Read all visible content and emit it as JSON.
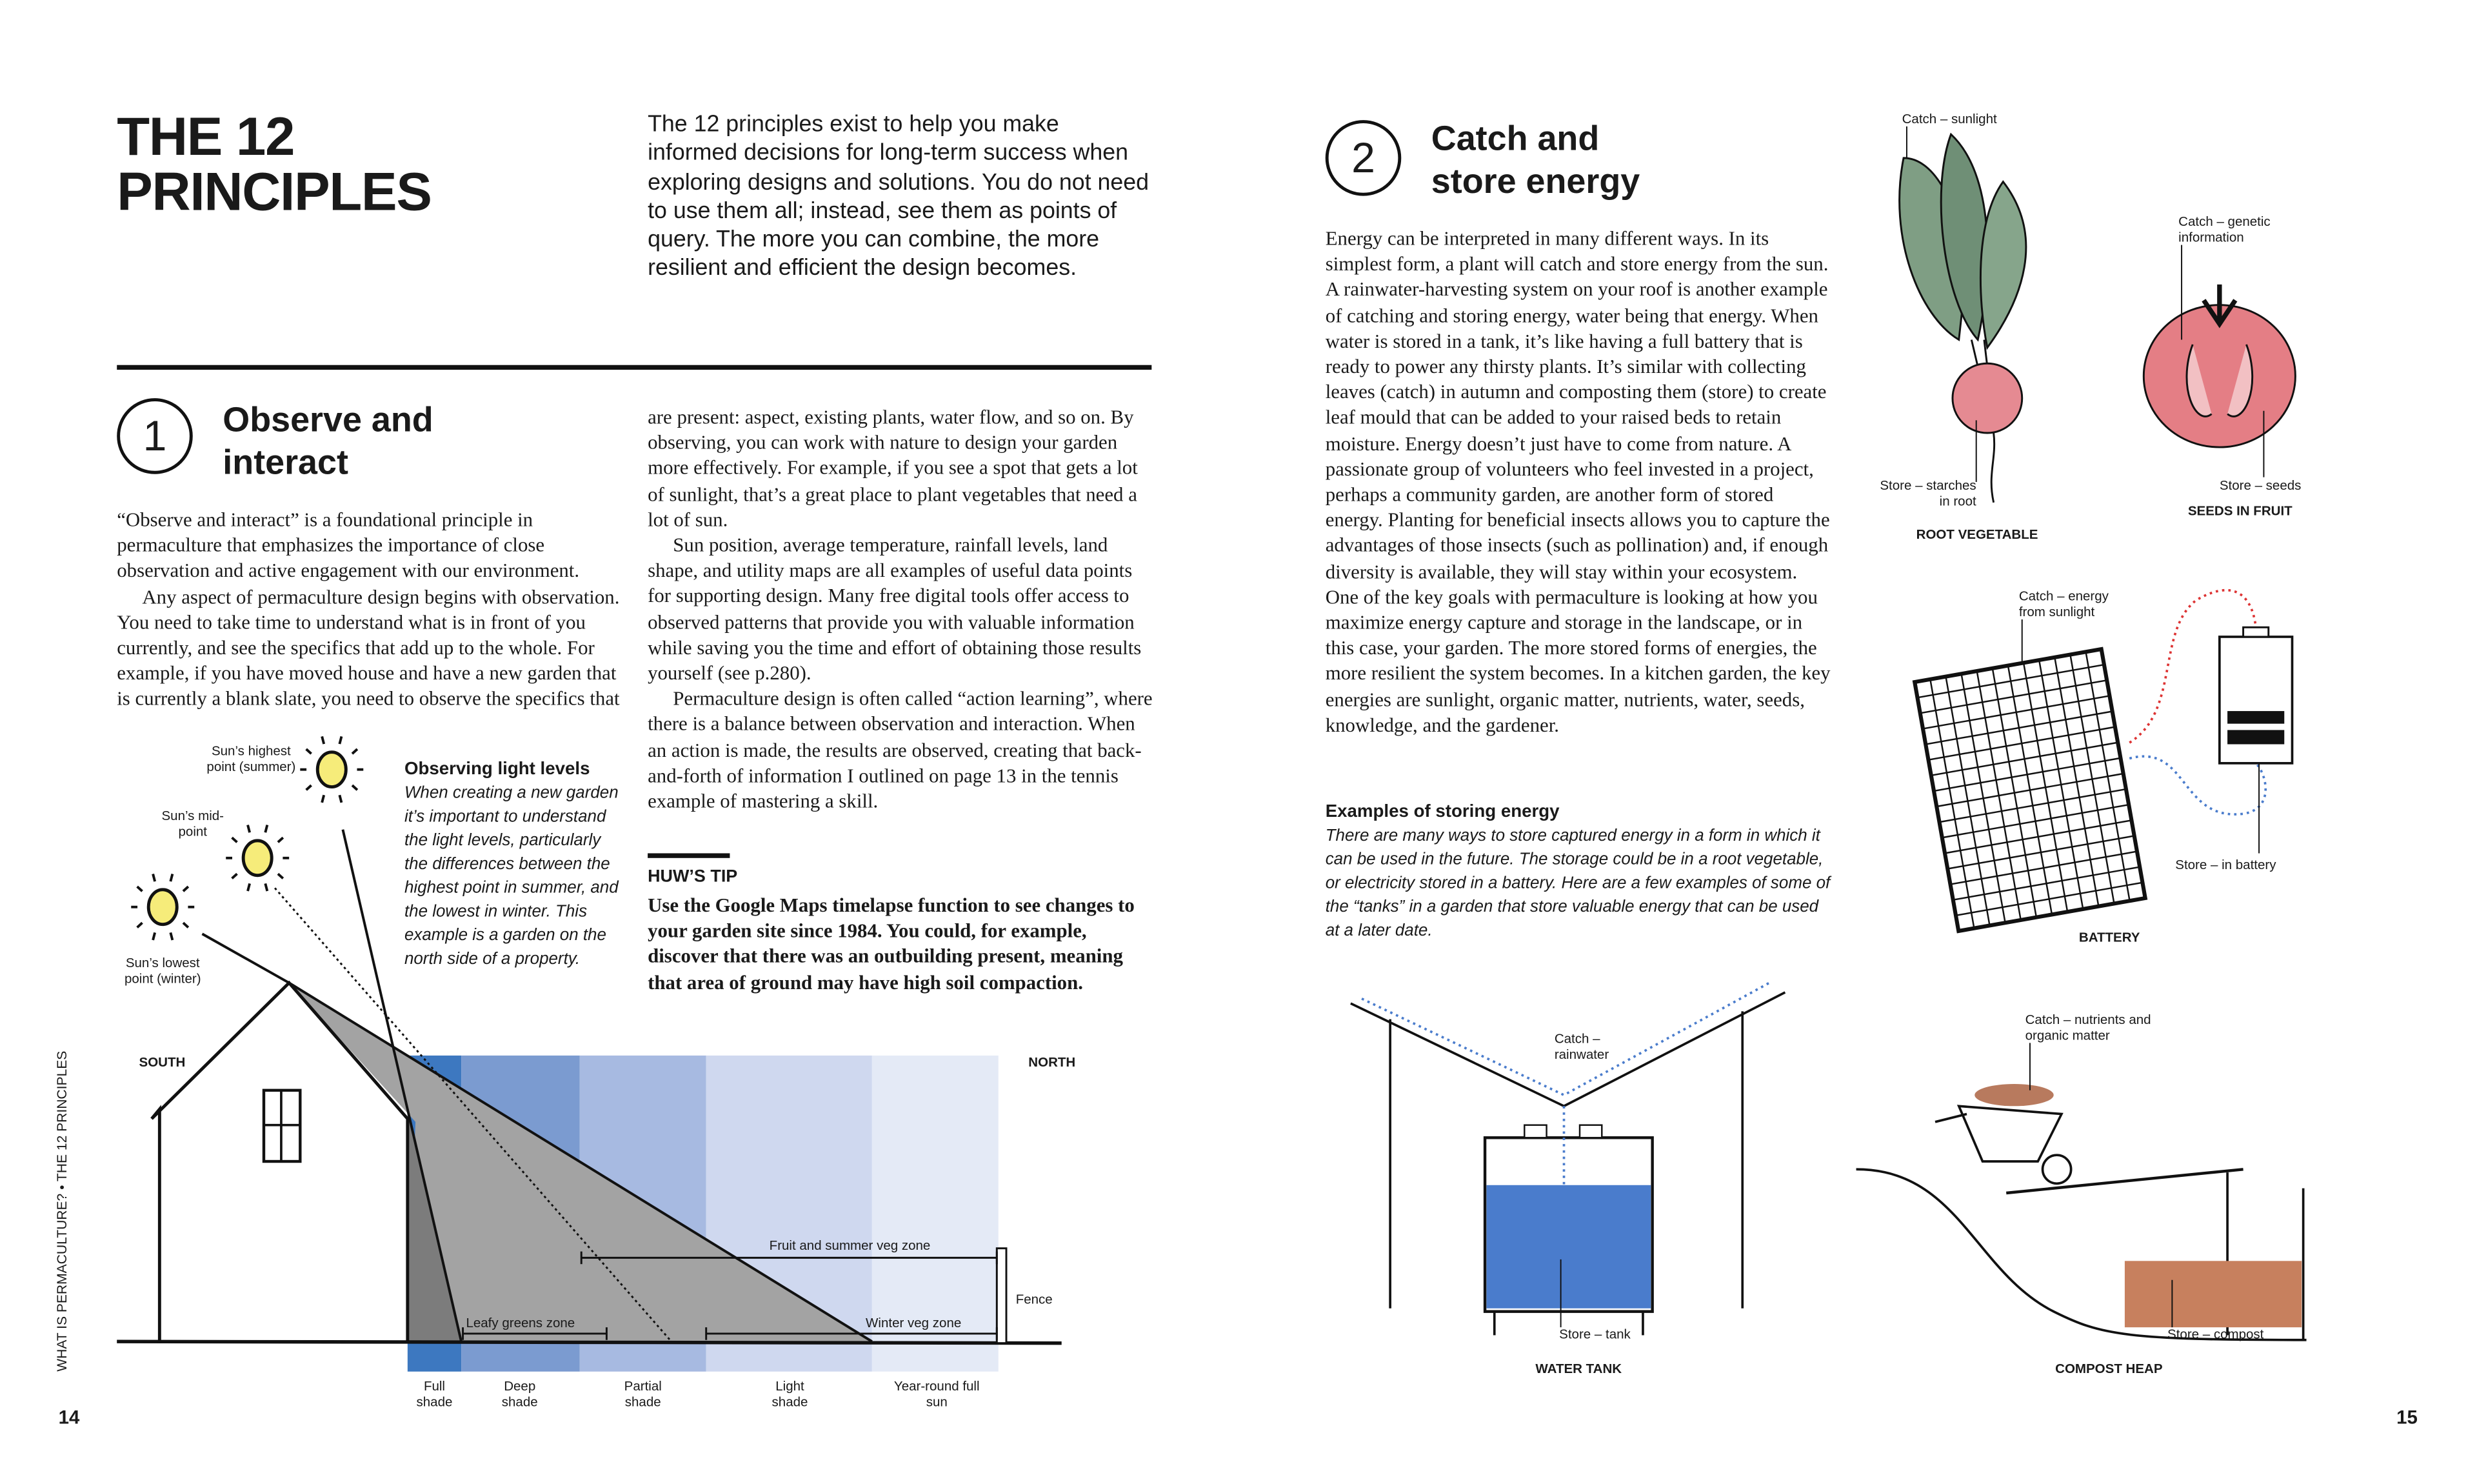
{
  "left_page": {
    "title_line1": "THE 12",
    "title_line2": "PRINCIPLES",
    "intro": "The 12 principles exist to help you make informed decisions for long-term success when exploring designs and solutions. You do not need to use them all; instead, see them as points of query. The more you can combine, the more resilient and efficient the design becomes.",
    "principle_number": "1",
    "principle_title": "Observe and interact",
    "col1_p1": "“Observe and interact” is a foundational principle in permaculture that emphasizes the importance of close observation and active engagement with our environment.",
    "col1_p2": "Any aspect of permaculture design begins with observation. You need to take time to understand what is in front of you currently, and see the specifics that add up to the whole. For example, if you have moved house and have a new garden that is currently a blank slate, you need to observe the specifics that",
    "col2_p1": "are present: aspect, existing plants, water flow, and so on. By observing, you can work with nature to design your garden more effectively. For example, if you see a spot that gets a lot of sunlight, that’s a great place to plant vegetables that need a lot of sun.",
    "col2_p2": "Sun position, average temperature, rainfall levels, land shape, and utility maps are all examples of useful data points for supporting design. Many free digital tools offer access to observed patterns that provide you with valuable information while saving you the time and effort of obtaining those results yourself (see p.280).",
    "col2_p3": "Permaculture design is often called “action learning”, where there is a balance between observation and interaction. When an action is made, the results are observed, creating that back-and-forth of information I outlined on page 13 in the tennis example of mastering a skill.",
    "tip_heading": "HUW’S TIP",
    "tip_text": "Use the Google Maps timelapse function to see changes to your garden site since 1984. You could, for example, discover that there was an outbuilding present, meaning that area of ground may have high soil compaction.",
    "sidebar_heading": "Observing light levels",
    "sidebar_text": "When creating a new garden it’s important to understand the light levels, particularly the differences between the highest point in summer, and the lowest in winter. This example is a garden on the north side of a property.",
    "diagram": {
      "sun_high": "Sun’s highest point (summer)",
      "sun_mid": "Sun’s mid-point",
      "sun_low": "Sun’s lowest point (winter)",
      "south": "SOUTH",
      "north": "NORTH",
      "fence": "Fence",
      "fruit_zone": "Fruit and summer veg zone",
      "leafy_zone": "Leafy greens zone",
      "winter_zone": "Winter veg zone",
      "zones": [
        {
          "label": "Full shade",
          "color": "#3d78c0"
        },
        {
          "label": "Deep shade",
          "color": "#7b9bd0"
        },
        {
          "label": "Partial shade",
          "color": "#a7bae1"
        },
        {
          "label": "Light shade",
          "color": "#cfd8ef"
        },
        {
          "label": "Year-round full sun",
          "color": "#e4eaf6"
        }
      ]
    },
    "running_head": "WHAT IS PERMACULTURE? • THE 12 PRINCIPLES",
    "page_number": "14"
  },
  "right_page": {
    "principle_number": "2",
    "principle_title": "Catch and store energy",
    "body": "Energy can be interpreted in many different ways. In its simplest form, a plant will catch and store energy from the sun. A rainwater-harvesting system on your roof is another example of catching and storing energy, water being that energy. When water is stored in a tank, it’s like having a full battery that is ready to power any thirsty plants. It’s similar with collecting leaves (catch) in autumn and composting them (store) to create leaf mould that can be added to your raised beds to retain moisture. Energy doesn’t just have to come from nature. A passionate group of volunteers who feel invested in a project, perhaps a community garden, are another form of stored energy. Planting for beneficial insects allows you to capture the advantages of those insects (such as pollination) and, if enough diversity is available, they will stay within your ecosystem. One of the key goals with permaculture is looking at how you maximize energy capture and storage in the landscape, or in this case, your garden. The more stored forms of energies, the more resilient the system becomes. In a kitchen garden, the key energies are sunlight, organic matter, nutrients, water, seeds, knowledge, and the gardener.",
    "examples_heading": "Examples of storing energy",
    "examples_text": "There are many ways to store captured energy in a form in which it can be used in the future. The storage could be in a root vegetable, or electricity stored in a battery. Here are a few examples of some of the “tanks” in a garden that store valuable energy that can be used at a later date.",
    "root": {
      "catch": "Catch – sunlight",
      "store": "Store – starches in root",
      "caption": "ROOT VEGETABLE"
    },
    "fruit": {
      "catch": "Catch – genetic information",
      "store": "Store – seeds",
      "caption": "SEEDS IN FRUIT"
    },
    "battery": {
      "catch": "Catch – energy from sunlight",
      "store": "Store – in battery",
      "caption": "BATTERY"
    },
    "tank": {
      "catch": "Catch – rainwater",
      "store": "Store – tank",
      "caption": "WATER TANK"
    },
    "compost": {
      "catch": "Catch – nutrients and organic matter",
      "store": "Store – compost",
      "caption": "COMPOST HEAP"
    },
    "page_number": "15"
  },
  "colors": {
    "water_blue": "#4a7ccc",
    "leaf_green": "#7f9e84",
    "tomato_red": "#e0767c",
    "sun_yellow": "#f6ec7a",
    "shadow_gray": "#a3a3a3"
  }
}
